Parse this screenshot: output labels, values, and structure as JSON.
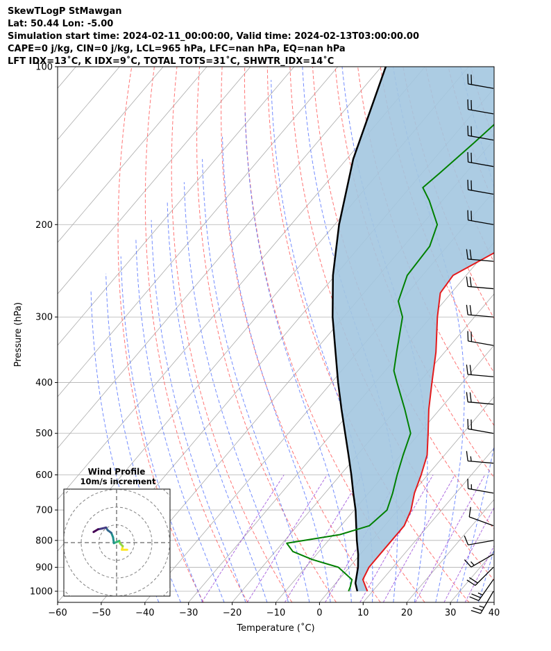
{
  "header": {
    "line1": "SkewTLogP StMawgan",
    "line2": "Lat: 50.44   Lon: -5.00",
    "line3": "Simulation start time: 2024-02-11_00:00:00, Valid time: 2024-02-13T03:00:00.00",
    "line4": "CAPE=0 j/kg, CIN=0 j/kg, LCL=965 hPa, LFC=nan hPa, EQ=nan hPa",
    "line5": "LFT IDX=13˚C, K IDX=9˚C, TOTAL TOTS=31˚C, SHWTR_IDX=14˚C"
  },
  "chart_data": {
    "type": "line",
    "xlabel": "Temperature (˚C)",
    "ylabel": "Pressure (hPa)",
    "xlim": [
      -60,
      40
    ],
    "ylim": [
      1050,
      100
    ],
    "yscale": "log",
    "x_ticks": [
      "−60",
      "−50",
      "−40",
      "−30",
      "−20",
      "−10",
      "0",
      "10",
      "20",
      "30",
      "40"
    ],
    "y_ticks": [
      "1000",
      "900",
      "800",
      "700",
      "600",
      "500",
      "400",
      "300",
      "200",
      "100"
    ],
    "grid": true,
    "colors": {
      "temperature": "#e31a1c",
      "dewpoint": "#008000",
      "parcel": "#000000",
      "shade": "#a3c6e0",
      "dry_adiabat": "#ff6666",
      "moist_adiabat": "#4466ff",
      "mixing_ratio": "#9a4ad8",
      "isotherm": "#aaaaaa"
    },
    "temperature_profile": [
      [
        1000,
        8.8
      ],
      [
        980,
        7.5
      ],
      [
        950,
        5.5
      ],
      [
        900,
        4.5
      ],
      [
        850,
        4.5
      ],
      [
        800,
        4.5
      ],
      [
        750,
        4.5
      ],
      [
        700,
        3.0
      ],
      [
        650,
        0.5
      ],
      [
        600,
        -1.5
      ],
      [
        550,
        -4.0
      ],
      [
        500,
        -8.0
      ],
      [
        450,
        -12.5
      ],
      [
        400,
        -17.0
      ],
      [
        350,
        -22.0
      ],
      [
        300,
        -28.5
      ],
      [
        270,
        -32.5
      ],
      [
        250,
        -33.0
      ],
      [
        220,
        -26.5
      ],
      [
        200,
        -21.5
      ],
      [
        180,
        -17.0
      ],
      [
        160,
        -14.0
      ],
      [
        140,
        -12.8
      ],
      [
        120,
        -15.5
      ],
      [
        110,
        -19.5
      ],
      [
        100,
        -24.5
      ]
    ],
    "dewpoint_profile": [
      [
        1000,
        4.5
      ],
      [
        980,
        4.0
      ],
      [
        950,
        3.0
      ],
      [
        900,
        -2.5
      ],
      [
        870,
        -10.0
      ],
      [
        840,
        -16.0
      ],
      [
        810,
        -19.0
      ],
      [
        780,
        -8.5
      ],
      [
        750,
        -3.5
      ],
      [
        700,
        -2.5
      ],
      [
        650,
        -4.5
      ],
      [
        600,
        -7.0
      ],
      [
        550,
        -9.5
      ],
      [
        500,
        -12.0
      ],
      [
        450,
        -18.0
      ],
      [
        400,
        -25.0
      ],
      [
        380,
        -28.0
      ],
      [
        350,
        -31.0
      ],
      [
        300,
        -36.5
      ],
      [
        280,
        -40.5
      ],
      [
        250,
        -43.5
      ],
      [
        220,
        -44.0
      ],
      [
        200,
        -46.5
      ],
      [
        180,
        -53.0
      ],
      [
        170,
        -57.0
      ],
      [
        160,
        -56.0
      ],
      [
        140,
        -54.0
      ],
      [
        120,
        -52.0
      ],
      [
        100,
        -52.0
      ]
    ],
    "parcel_profile": [
      [
        1000,
        6.5
      ],
      [
        965,
        4.5
      ],
      [
        900,
        2.0
      ],
      [
        850,
        -0.5
      ],
      [
        800,
        -3.5
      ],
      [
        750,
        -6.5
      ],
      [
        700,
        -9.7
      ],
      [
        650,
        -13.5
      ],
      [
        600,
        -17.5
      ],
      [
        550,
        -22.0
      ],
      [
        500,
        -27.0
      ],
      [
        450,
        -32.5
      ],
      [
        400,
        -38.5
      ],
      [
        350,
        -45.0
      ],
      [
        300,
        -52.5
      ],
      [
        250,
        -60.5
      ],
      [
        200,
        -69.0
      ],
      [
        150,
        -78.5
      ],
      [
        100,
        -89.0
      ]
    ],
    "wind_barbs": [
      {
        "p": 1000,
        "speed_kt": 25,
        "dir": 210
      },
      {
        "p": 950,
        "speed_kt": 25,
        "dir": 215
      },
      {
        "p": 900,
        "speed_kt": 20,
        "dir": 225
      },
      {
        "p": 850,
        "speed_kt": 15,
        "dir": 240
      },
      {
        "p": 800,
        "speed_kt": 10,
        "dir": 260
      },
      {
        "p": 750,
        "speed_kt": 10,
        "dir": 290
      },
      {
        "p": 650,
        "speed_kt": 15,
        "dir": 280
      },
      {
        "p": 570,
        "speed_kt": 15,
        "dir": 275
      },
      {
        "p": 500,
        "speed_kt": 20,
        "dir": 280
      },
      {
        "p": 440,
        "speed_kt": 20,
        "dir": 275
      },
      {
        "p": 390,
        "speed_kt": 20,
        "dir": 275
      },
      {
        "p": 340,
        "speed_kt": 20,
        "dir": 280
      },
      {
        "p": 300,
        "speed_kt": 20,
        "dir": 275
      },
      {
        "p": 265,
        "speed_kt": 20,
        "dir": 275
      },
      {
        "p": 235,
        "speed_kt": 20,
        "dir": 275
      },
      {
        "p": 200,
        "speed_kt": 20,
        "dir": 280
      },
      {
        "p": 175,
        "speed_kt": 20,
        "dir": 280
      },
      {
        "p": 155,
        "speed_kt": 20,
        "dir": 280
      },
      {
        "p": 138,
        "speed_kt": 20,
        "dir": 280
      },
      {
        "p": 123,
        "speed_kt": 20,
        "dir": 280
      },
      {
        "p": 110,
        "speed_kt": 20,
        "dir": 280
      }
    ],
    "hodograph": {
      "title": "Wind Profile",
      "subtitle": "10m/s increment",
      "ring_step": 10,
      "max": 30,
      "points": [
        [
          6,
          -4
        ],
        [
          3,
          -4
        ],
        [
          3.5,
          -2
        ],
        [
          2,
          -0.5
        ],
        [
          1.5,
          1
        ],
        [
          0.5,
          0.5
        ],
        [
          -1.5,
          -0.3
        ],
        [
          -2,
          3
        ],
        [
          -3,
          5.5
        ],
        [
          -5,
          7
        ],
        [
          -6,
          8.5
        ],
        [
          -8,
          8
        ],
        [
          -10.5,
          7.5
        ],
        [
          -13,
          6
        ]
      ]
    }
  }
}
